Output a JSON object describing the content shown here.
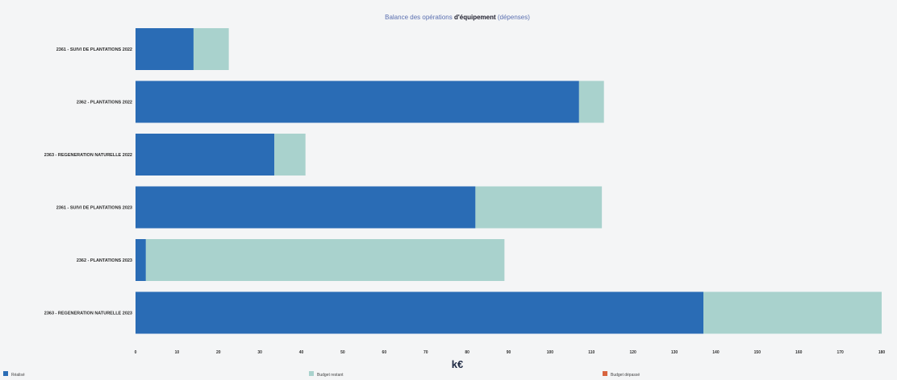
{
  "chart_data": {
    "type": "bar",
    "orientation": "horizontal",
    "stacked": true,
    "title_parts": [
      "Balance des opérations ",
      "d'équipement",
      " (dépenses)"
    ],
    "categories": [
      "2361 - SUIVI DE PLANTATIONS 2022",
      "2362 - PLANTATIONS 2022",
      "2363 - REGENERATION NATURELLE 2022",
      "2361 - SUIVI DE PLANTATIONS 2023",
      "2362 - PLANTATIONS 2023",
      "2363 - REGENERATION NATURELLE 2023"
    ],
    "series": [
      {
        "name": "Réalisé",
        "color": "#2a6cb5",
        "values": [
          14,
          107,
          33.5,
          82,
          2.5,
          137
        ]
      },
      {
        "name": "Budget restant",
        "color": "#a9d2cd",
        "values": [
          8.5,
          6,
          7.5,
          30.5,
          86.5,
          43
        ]
      },
      {
        "name": "Budget dépassé",
        "color": "#d8653f",
        "values": [
          0,
          0,
          0,
          0,
          0,
          0
        ]
      }
    ],
    "xlabel": "k€",
    "xlim": [
      0,
      180
    ],
    "xticks": [
      0,
      10,
      20,
      30,
      40,
      50,
      60,
      70,
      80,
      90,
      100,
      110,
      120,
      130,
      140,
      150,
      160,
      170,
      180
    ],
    "grid": false,
    "legend_position": "bottom"
  }
}
